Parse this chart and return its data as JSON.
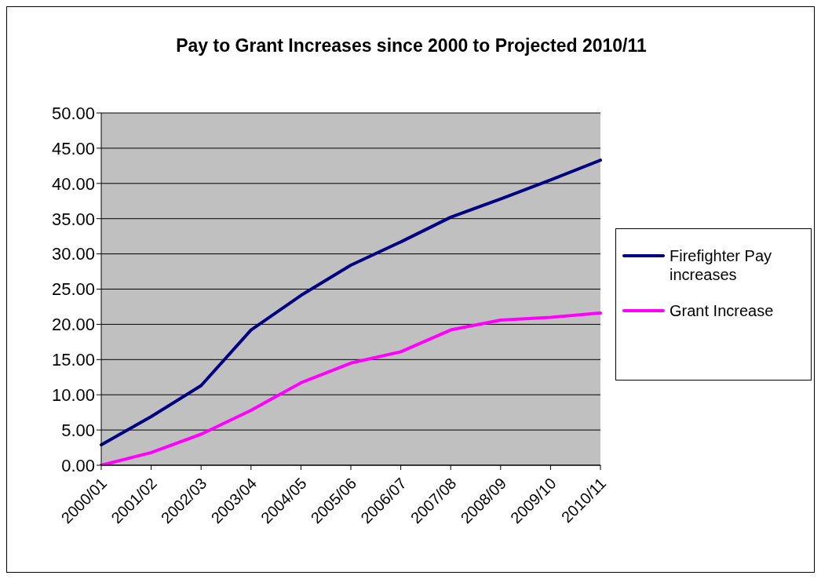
{
  "chart_data": {
    "type": "line",
    "title": "Pay to Grant Increases since 2000 to Projected 2010/11",
    "categories": [
      "2000/01",
      "2001/02",
      "2002/03",
      "2003/04",
      "2004/05",
      "2005/06",
      "2006/07",
      "2007/08",
      "2008/09",
      "2009/10",
      "2010/11"
    ],
    "series": [
      {
        "name": "Firefighter Pay increases",
        "color": "#000080",
        "values": [
          2.9,
          6.9,
          11.3,
          19.2,
          24.1,
          28.4,
          31.7,
          35.2,
          37.8,
          40.5,
          43.3
        ]
      },
      {
        "name": "Grant Increase",
        "color": "#ff00ff",
        "values": [
          0,
          1.8,
          4.4,
          7.8,
          11.7,
          14.5,
          16.1,
          19.2,
          20.6,
          21.0,
          21.6
        ]
      }
    ],
    "ylim": [
      0,
      50
    ],
    "yticks": [
      {
        "value": 0,
        "label": "0.00"
      },
      {
        "value": 5,
        "label": "5.00"
      },
      {
        "value": 10,
        "label": "10.00"
      },
      {
        "value": 15,
        "label": "15.00"
      },
      {
        "value": 20,
        "label": "20.00"
      },
      {
        "value": 25,
        "label": "25.00"
      },
      {
        "value": 30,
        "label": "30.00"
      },
      {
        "value": 35,
        "label": "35.00"
      },
      {
        "value": 40,
        "label": "40.00"
      },
      {
        "value": 45,
        "label": "45.00"
      },
      {
        "value": 50,
        "label": "50.00"
      }
    ],
    "grid": "y",
    "legend": "right",
    "marker": "none",
    "line_style": "solid"
  }
}
